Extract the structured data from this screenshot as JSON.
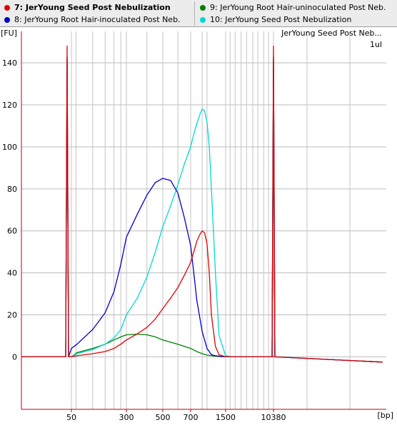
{
  "legend": {
    "items": [
      {
        "id": "7",
        "label": "7: JerYoung Seed Post Nebulization",
        "color": "#e00000",
        "selected": true
      },
      {
        "id": "9",
        "label": "9: JerYoung Root Hair-uninoculated Post Neb.",
        "color": "#008000",
        "selected": false
      },
      {
        "id": "8",
        "label": "8: JerYoung Root Hair-inoculated Post Neb.",
        "color": "#0000c8",
        "selected": false
      },
      {
        "id": "10",
        "label": "10: JerYoung Seed Post Nebulization",
        "color": "#00d8d8",
        "selected": false
      }
    ]
  },
  "chart_data": {
    "type": "line",
    "ylabel": "[FU]",
    "xlabel": "[bp]",
    "sample_name": "JerYoung Seed Post Neb...",
    "volume": "1ul",
    "ylim": [
      -25,
      155
    ],
    "y_ticks": [
      0,
      20,
      40,
      60,
      80,
      100,
      120,
      140
    ],
    "x_tick_labels": [
      "50",
      "300",
      "500",
      "700",
      "1500",
      "10380"
    ],
    "marker_peaks_bp": [
      35,
      10380
    ],
    "grid": true,
    "series": [
      {
        "name": "9: JerYoung Root Hair-uninoculated Post Neb.",
        "color": "#008000",
        "x": [
          50,
          60,
          100,
          150,
          200,
          250,
          300,
          350,
          400,
          450,
          500,
          600,
          700,
          800,
          900,
          1000,
          1200,
          1500,
          2000,
          5000,
          10380
        ],
        "y": [
          0,
          2,
          4,
          6,
          8,
          9.5,
          10.5,
          10.8,
          10.5,
          9.5,
          8,
          6,
          4,
          2.5,
          1.5,
          0.8,
          0.3,
          0,
          0,
          0,
          0
        ]
      },
      {
        "name": "10: JerYoung Seed Post Nebulization",
        "color": "#00d8d8",
        "x": [
          50,
          60,
          100,
          150,
          200,
          250,
          300,
          350,
          400,
          450,
          500,
          550,
          600,
          650,
          700,
          750,
          800,
          850,
          900,
          950,
          1000,
          1050,
          1100,
          1200,
          1300,
          1500,
          2000,
          10380
        ],
        "y": [
          0,
          1.5,
          3.5,
          6,
          9,
          13,
          20,
          28,
          38,
          50,
          62,
          72,
          82,
          92,
          100,
          106,
          111,
          115,
          118,
          117,
          112,
          100,
          80,
          40,
          10,
          0.5,
          0,
          0
        ]
      },
      {
        "name": "8: JerYoung Root Hair-inoculated Post Neb.",
        "color": "#0000c8",
        "x": [
          50,
          60,
          100,
          150,
          200,
          250,
          300,
          350,
          400,
          450,
          500,
          550,
          600,
          650,
          700,
          750,
          800,
          900,
          1000,
          1100,
          1200,
          1500,
          2000,
          10380
        ],
        "y": [
          4,
          6,
          13,
          21,
          31,
          44,
          57,
          68,
          77,
          83,
          85,
          84,
          78,
          66,
          53,
          40,
          27,
          12,
          4,
          1,
          0.5,
          0,
          0,
          0
        ]
      },
      {
        "name": "7: JerYoung Seed Post Nebulization",
        "color": "#e00000",
        "x": [
          50,
          60,
          100,
          150,
          200,
          250,
          300,
          350,
          400,
          450,
          500,
          550,
          600,
          650,
          700,
          750,
          800,
          850,
          900,
          950,
          1000,
          1050,
          1100,
          1200,
          1300,
          1500,
          2000,
          10380
        ],
        "y": [
          0,
          0.5,
          1.5,
          2.5,
          4,
          6,
          8,
          11,
          14,
          18,
          23,
          28,
          33,
          39,
          45,
          50,
          55,
          58,
          60,
          59,
          54,
          40,
          20,
          5,
          1,
          0,
          0,
          0
        ]
      }
    ]
  }
}
